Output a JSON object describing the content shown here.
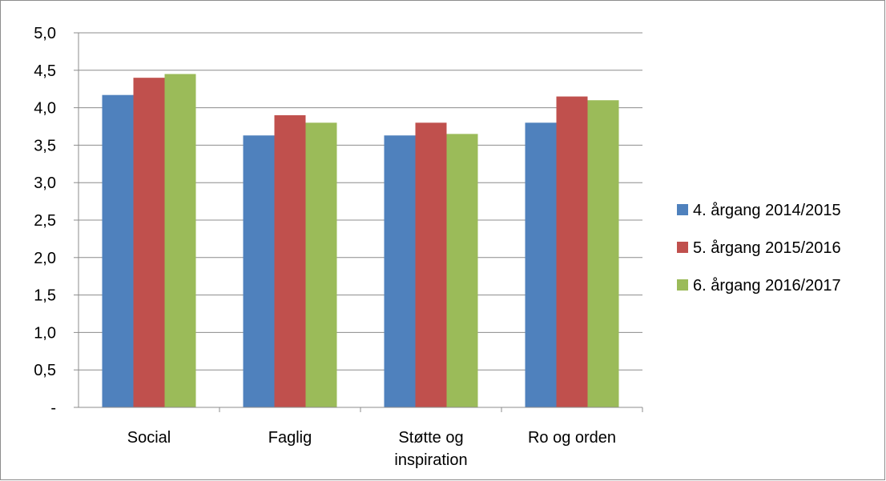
{
  "chart_data": {
    "type": "bar",
    "categories": [
      [
        "Social"
      ],
      [
        "Faglig"
      ],
      [
        "Støtte og",
        "inspiration"
      ],
      [
        "Ro og orden"
      ]
    ],
    "series": [
      {
        "name": "4. årgang 2014/2015",
        "color": "#4f81bd",
        "values": [
          4.17,
          3.63,
          3.63,
          3.8
        ]
      },
      {
        "name": "5. årgang 2015/2016",
        "color": "#c0504d",
        "values": [
          4.4,
          3.9,
          3.8,
          4.15
        ]
      },
      {
        "name": "6. årgang 2016/2017",
        "color": "#9bbb59",
        "values": [
          4.45,
          3.8,
          3.65,
          4.1
        ]
      }
    ],
    "ylim": [
      0,
      5
    ],
    "y_ticks": [
      {
        "value": 0,
        "label": "-"
      },
      {
        "value": 0.5,
        "label": "0,5"
      },
      {
        "value": 1.0,
        "label": "1,0"
      },
      {
        "value": 1.5,
        "label": "1,5"
      },
      {
        "value": 2.0,
        "label": "2,0"
      },
      {
        "value": 2.5,
        "label": "2,5"
      },
      {
        "value": 3.0,
        "label": "3,0"
      },
      {
        "value": 3.5,
        "label": "3,5"
      },
      {
        "value": 4.0,
        "label": "4,0"
      },
      {
        "value": 4.5,
        "label": "4,5"
      },
      {
        "value": 5.0,
        "label": "5,0"
      }
    ],
    "grid": true,
    "legend_position": "right"
  }
}
